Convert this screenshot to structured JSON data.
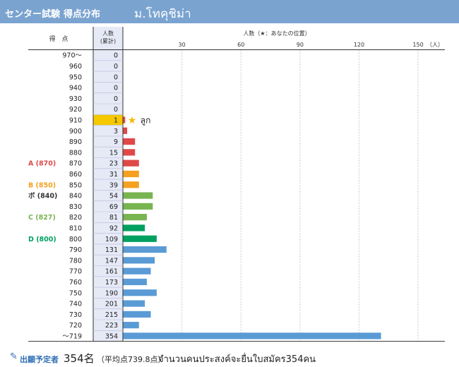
{
  "header": {
    "title_part1": "センター試験",
    "title_part2": "得点分布",
    "university": "ม.โทคุชิม่า"
  },
  "table": {
    "score_header": "得　点",
    "count_header_line1": "人数",
    "count_header_line2": "(累計)",
    "chart_header": "人数（★：あなたの位置）",
    "axis_unit": "（人）",
    "star_label": "ลูก"
  },
  "footer": {
    "label": "出願予定者",
    "count": "354名",
    "average": "（平均点739.8点）",
    "note": "จำนวนคนประสงค์จะยื่นใบสมัคร354คน"
  },
  "colors": {
    "header_bg": "#7aa3d0",
    "count_col_bg": "#e6e9f6",
    "highlight_row": "#f5c800",
    "star": "#f5b800",
    "red": "#e04848",
    "orange": "#f5a020",
    "light_green": "#78b450",
    "green": "#00a060",
    "blue": "#5a9bd6"
  },
  "chart_data": {
    "type": "bar",
    "orientation": "horizontal",
    "xlim": [
      0,
      150
    ],
    "xticks": [
      30,
      60,
      90,
      120,
      150
    ],
    "categories": [
      "970～",
      "960",
      "950",
      "940",
      "930",
      "920",
      "910",
      "900",
      "890",
      "880",
      "870",
      "860",
      "850",
      "840",
      "830",
      "820",
      "810",
      "800",
      "790",
      "780",
      "770",
      "760",
      "750",
      "740",
      "730",
      "720",
      "～719"
    ],
    "cumulative": [
      0,
      0,
      0,
      0,
      0,
      0,
      1,
      3,
      9,
      15,
      23,
      31,
      39,
      54,
      69,
      81,
      92,
      109,
      131,
      147,
      161,
      173,
      190,
      201,
      215,
      223,
      354
    ],
    "values": [
      0,
      0,
      0,
      0,
      0,
      0,
      1,
      2,
      6,
      6,
      8,
      8,
      8,
      15,
      15,
      12,
      11,
      17,
      22,
      16,
      14,
      12,
      17,
      11,
      14,
      8,
      131
    ],
    "bar_color_keys": [
      "red",
      "red",
      "red",
      "red",
      "red",
      "red",
      "red",
      "red",
      "red",
      "red",
      "red",
      "orange",
      "orange",
      "light_green",
      "light_green",
      "light_green",
      "green",
      "green",
      "blue",
      "blue",
      "blue",
      "blue",
      "blue",
      "blue",
      "blue",
      "blue",
      "blue"
    ],
    "highlight_index": 6,
    "markers": [
      {
        "label": "A (870)",
        "row": 10,
        "color_key": "red"
      },
      {
        "label": "B (850)",
        "row": 12,
        "color_key": "orange"
      },
      {
        "label": "ボ (840)",
        "row": 13,
        "color_key": "dark"
      },
      {
        "label": "C (827)",
        "row": 15,
        "color_key": "light_green"
      },
      {
        "label": "D (800)",
        "row": 17,
        "color_key": "green"
      }
    ]
  }
}
